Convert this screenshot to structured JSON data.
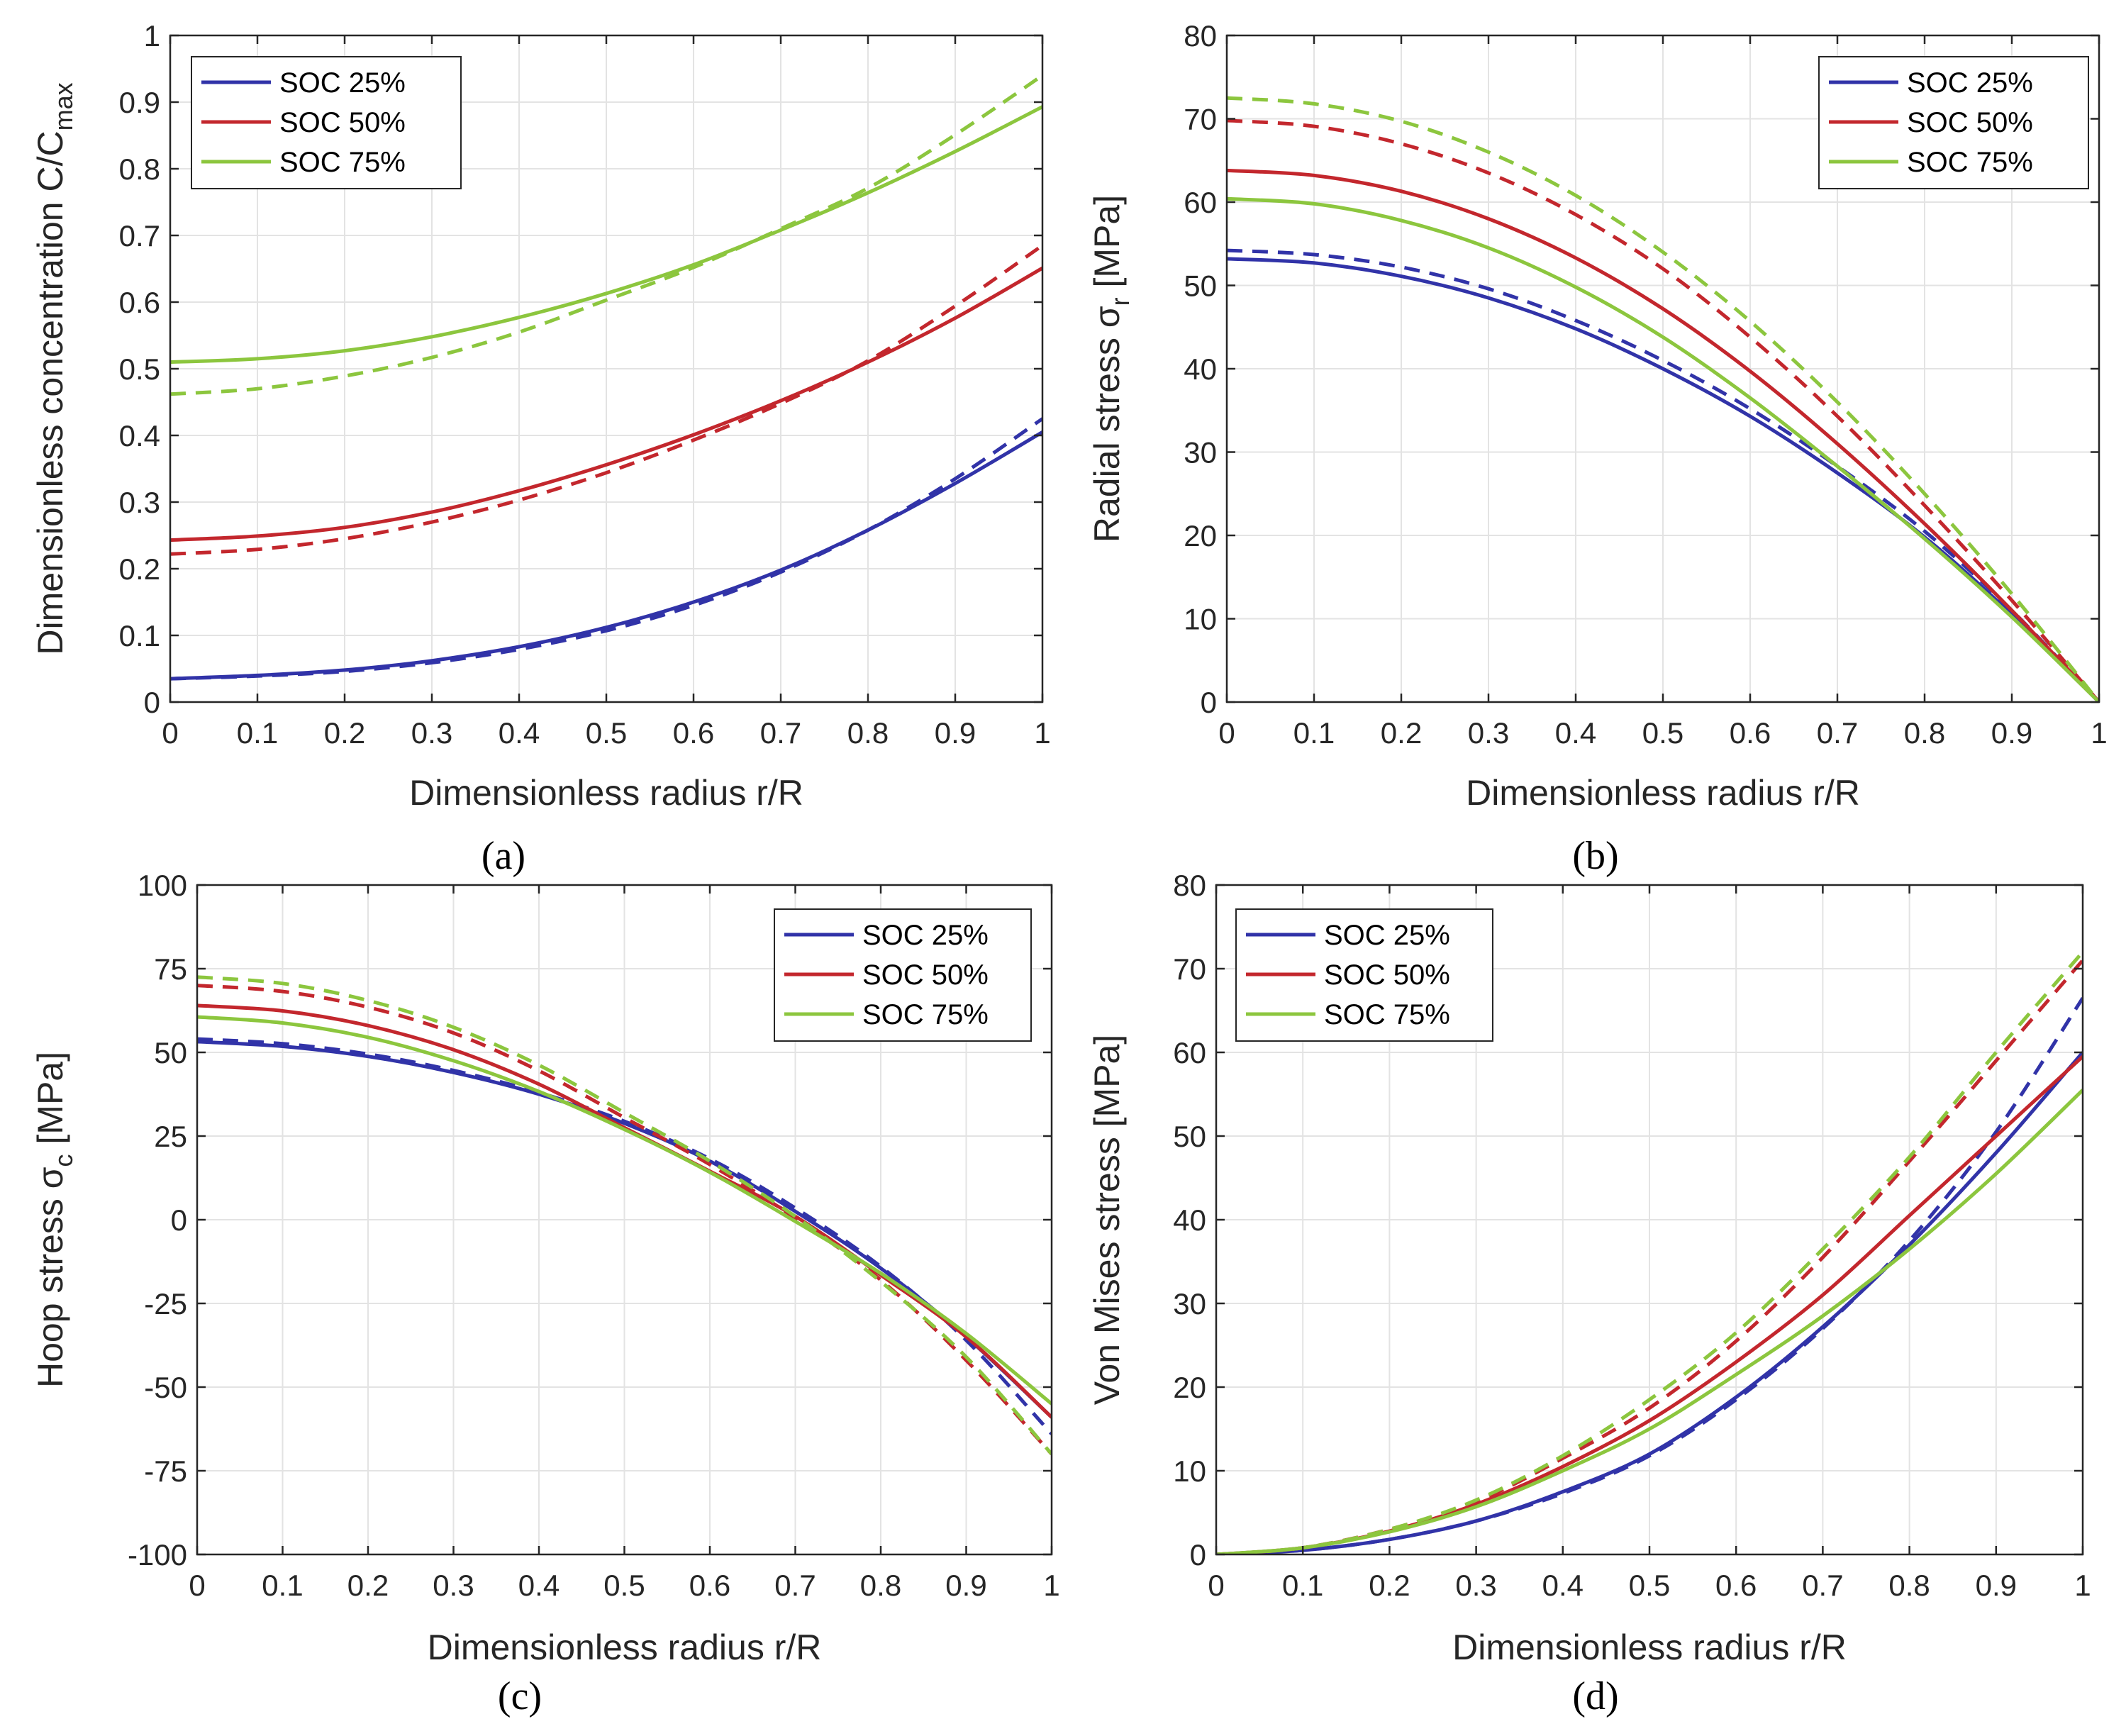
{
  "figure": {
    "legend_labels": [
      "SOC 25%",
      "SOC 50%",
      "SOC 75%"
    ]
  },
  "colors": {
    "soc25": "#3133a8",
    "soc50": "#c3272d",
    "soc75": "#8cc63e",
    "grid": "#e3e3e3",
    "axis": "#262626"
  },
  "chart_data": [
    {
      "id": "a",
      "type": "line",
      "caption": "(a)",
      "xlabel": "Dimensionless radius r/R",
      "ylabel_main": "Dimensionless concentration C/C",
      "ylabel_sub": "max",
      "xlim": [
        0,
        1
      ],
      "ylim": [
        0,
        1
      ],
      "xticks": [
        0,
        0.1,
        0.2,
        0.3,
        0.4,
        0.5,
        0.6,
        0.7,
        0.8,
        0.9,
        1
      ],
      "xtick_labels": [
        "0",
        "0.1",
        "0.2",
        "0.3",
        "0.4",
        "0.5",
        "0.6",
        "0.7",
        "0.8",
        "0.9",
        "1"
      ],
      "yticks": [
        0,
        0.1,
        0.2,
        0.3,
        0.4,
        0.5,
        0.6,
        0.7,
        0.8,
        0.9,
        1
      ],
      "ytick_labels": [
        "0",
        "0.1",
        "0.2",
        "0.3",
        "0.4",
        "0.5",
        "0.6",
        "0.7",
        "0.8",
        "0.9",
        "1"
      ],
      "legend": "top-left",
      "x": [
        0,
        0.1,
        0.2,
        0.3,
        0.4,
        0.5,
        0.6,
        0.7,
        0.8,
        0.9,
        1
      ],
      "series": [
        {
          "name": "SOC 25%",
          "style": "solid",
          "values": [
            0.035,
            0.04,
            0.048,
            0.062,
            0.083,
            0.112,
            0.15,
            0.198,
            0.258,
            0.328,
            0.405
          ]
        },
        {
          "name": "SOC 25%",
          "style": "dashed",
          "values": [
            0.035,
            0.039,
            0.046,
            0.059,
            0.079,
            0.107,
            0.145,
            0.195,
            0.258,
            0.335,
            0.425
          ]
        },
        {
          "name": "SOC 50%",
          "style": "solid",
          "values": [
            0.243,
            0.249,
            0.262,
            0.285,
            0.317,
            0.356,
            0.401,
            0.452,
            0.51,
            0.576,
            0.651
          ]
        },
        {
          "name": "SOC 50%",
          "style": "dashed",
          "values": [
            0.222,
            0.229,
            0.245,
            0.27,
            0.303,
            0.344,
            0.393,
            0.448,
            0.512,
            0.594,
            0.685
          ]
        },
        {
          "name": "SOC 75%",
          "style": "solid",
          "values": [
            0.51,
            0.515,
            0.527,
            0.548,
            0.577,
            0.613,
            0.656,
            0.708,
            0.764,
            0.826,
            0.893
          ]
        },
        {
          "name": "SOC 75%",
          "style": "dashed",
          "values": [
            0.462,
            0.47,
            0.489,
            0.517,
            0.555,
            0.603,
            0.652,
            0.71,
            0.771,
            0.851,
            0.94
          ]
        }
      ]
    },
    {
      "id": "b",
      "type": "line",
      "caption": "(b)",
      "xlabel": "Dimensionless radius r/R",
      "ylabel_main": "Radial stress σ",
      "ylabel_sub": "r",
      "ylabel_tail": " [MPa]",
      "xlim": [
        0,
        1
      ],
      "ylim": [
        0,
        80
      ],
      "xticks": [
        0,
        0.1,
        0.2,
        0.3,
        0.4,
        0.5,
        0.6,
        0.7,
        0.8,
        0.9,
        1
      ],
      "xtick_labels": [
        "0",
        "0.1",
        "0.2",
        "0.3",
        "0.4",
        "0.5",
        "0.6",
        "0.7",
        "0.8",
        "0.9",
        "1"
      ],
      "yticks": [
        0,
        10,
        20,
        30,
        40,
        50,
        60,
        70,
        80
      ],
      "ytick_labels": [
        "0",
        "10",
        "20",
        "30",
        "40",
        "50",
        "60",
        "70",
        "80"
      ],
      "legend": "top-right",
      "x": [
        0,
        0.1,
        0.2,
        0.3,
        0.4,
        0.5,
        0.6,
        0.7,
        0.8,
        0.9,
        1
      ],
      "series": [
        {
          "name": "SOC 25%",
          "style": "solid",
          "values": [
            53.2,
            52.7,
            51.1,
            48.5,
            44.8,
            40,
            34.3,
            27.5,
            19.8,
            10.5,
            0
          ]
        },
        {
          "name": "SOC 25%",
          "style": "dashed",
          "values": [
            54.2,
            53.7,
            52.2,
            49.6,
            45.8,
            41,
            35.2,
            28.3,
            20.5,
            11,
            0
          ]
        },
        {
          "name": "SOC 50%",
          "style": "solid",
          "values": [
            63.8,
            63.2,
            61.3,
            58,
            53.3,
            47.2,
            39.7,
            31,
            21.4,
            11,
            0
          ]
        },
        {
          "name": "SOC 50%",
          "style": "dashed",
          "values": [
            69.8,
            69.1,
            67,
            63.5,
            58.5,
            52,
            43.8,
            34.3,
            23.6,
            12.2,
            0
          ]
        },
        {
          "name": "SOC 75%",
          "style": "solid",
          "values": [
            60.4,
            59.8,
            57.8,
            54.5,
            49.8,
            43.8,
            36.5,
            28.3,
            19.6,
            10.2,
            0
          ]
        },
        {
          "name": "SOC 75%",
          "style": "dashed",
          "values": [
            72.5,
            71.8,
            69.7,
            66,
            60.8,
            54,
            45.7,
            36,
            25,
            13,
            0
          ]
        }
      ]
    },
    {
      "id": "c",
      "type": "line",
      "caption": "(c)",
      "xlabel": "Dimensionless radius r/R",
      "ylabel_main": "Hoop stress σ",
      "ylabel_sub": "c",
      "ylabel_tail": " [MPa]",
      "xlim": [
        0,
        1
      ],
      "ylim": [
        -100,
        100
      ],
      "xticks": [
        0,
        0.1,
        0.2,
        0.3,
        0.4,
        0.5,
        0.6,
        0.7,
        0.8,
        0.9,
        1
      ],
      "xtick_labels": [
        "0",
        "0.1",
        "0.2",
        "0.3",
        "0.4",
        "0.5",
        "0.6",
        "0.7",
        "0.8",
        "0.9",
        "1"
      ],
      "yticks": [
        -100,
        -75,
        -50,
        -25,
        0,
        25,
        50,
        75,
        100
      ],
      "ytick_labels": [
        "-100",
        "-75",
        "-50",
        "-25",
        "0",
        "25",
        "50",
        "75",
        "100"
      ],
      "legend": "top-right",
      "x": [
        0,
        0.1,
        0.2,
        0.3,
        0.4,
        0.5,
        0.6,
        0.7,
        0.8,
        0.9,
        1
      ],
      "series": [
        {
          "name": "SOC 25%",
          "style": "solid",
          "values": [
            53.2,
            51.8,
            48.8,
            44,
            37.5,
            28.8,
            17.5,
            2.5,
            -14.5,
            -35,
            -59
          ]
        },
        {
          "name": "SOC 25%",
          "style": "dashed",
          "values": [
            54,
            52.6,
            49.5,
            44.6,
            38,
            29.4,
            18.2,
            3.5,
            -14,
            -36,
            -64
          ]
        },
        {
          "name": "SOC 50%",
          "style": "solid",
          "values": [
            64,
            62.4,
            58,
            50.8,
            40.5,
            27.5,
            14.5,
            1,
            -16.5,
            -35,
            -59
          ]
        },
        {
          "name": "SOC 50%",
          "style": "dashed",
          "values": [
            70,
            68.2,
            63.5,
            55.8,
            44.5,
            30.5,
            16.5,
            0.5,
            -18,
            -42,
            -70
          ]
        },
        {
          "name": "SOC 75%",
          "style": "solid",
          "values": [
            60.6,
            58.8,
            54.5,
            47.5,
            38.3,
            27,
            14.2,
            -0.5,
            -16,
            -34,
            -55
          ]
        },
        {
          "name": "SOC 75%",
          "style": "dashed",
          "values": [
            72.5,
            70.6,
            65.5,
            57.5,
            46.2,
            32,
            17.5,
            1,
            -18.5,
            -41,
            -70
          ]
        }
      ]
    },
    {
      "id": "d",
      "type": "line",
      "caption": "(d)",
      "xlabel": "Dimensionless radius r/R",
      "ylabel_main": "Von Mises stress [MPa]",
      "xlim": [
        0,
        1
      ],
      "ylim": [
        0,
        80
      ],
      "xticks": [
        0,
        0.1,
        0.2,
        0.3,
        0.4,
        0.5,
        0.6,
        0.7,
        0.8,
        0.9,
        1
      ],
      "xtick_labels": [
        "0",
        "0.1",
        "0.2",
        "0.3",
        "0.4",
        "0.5",
        "0.6",
        "0.7",
        "0.8",
        "0.9",
        "1"
      ],
      "yticks": [
        0,
        10,
        20,
        30,
        40,
        50,
        60,
        70,
        80
      ],
      "ytick_labels": [
        "0",
        "10",
        "20",
        "30",
        "40",
        "50",
        "60",
        "70",
        "80"
      ],
      "legend": "top-left",
      "x": [
        0,
        0.1,
        0.2,
        0.3,
        0.4,
        0.5,
        0.6,
        0.7,
        0.8,
        0.9,
        1
      ],
      "series": [
        {
          "name": "SOC 25%",
          "style": "solid",
          "values": [
            0,
            0.5,
            1.8,
            4,
            7.5,
            12,
            18.8,
            27.2,
            37,
            48,
            60
          ]
        },
        {
          "name": "SOC 25%",
          "style": "dashed",
          "values": [
            0,
            0.5,
            1.8,
            4,
            7.3,
            11.8,
            18.5,
            27,
            37.5,
            50.5,
            66.5
          ]
        },
        {
          "name": "SOC 50%",
          "style": "solid",
          "values": [
            0,
            0.8,
            2.8,
            6,
            10.5,
            16,
            23,
            31,
            40.5,
            50,
            59.5
          ]
        },
        {
          "name": "SOC 50%",
          "style": "dashed",
          "values": [
            0,
            0.8,
            3,
            6.3,
            11.5,
            17.5,
            25.5,
            35.5,
            47,
            59,
            71
          ]
        },
        {
          "name": "SOC 75%",
          "style": "solid",
          "values": [
            0,
            0.8,
            2.7,
            5.7,
            10,
            15,
            21.5,
            28.5,
            36.5,
            45.5,
            55.5
          ]
        },
        {
          "name": "SOC 75%",
          "style": "dashed",
          "values": [
            0,
            0.8,
            3,
            6.5,
            11.8,
            18.5,
            26.5,
            36.5,
            47.5,
            60,
            72
          ]
        }
      ]
    }
  ]
}
